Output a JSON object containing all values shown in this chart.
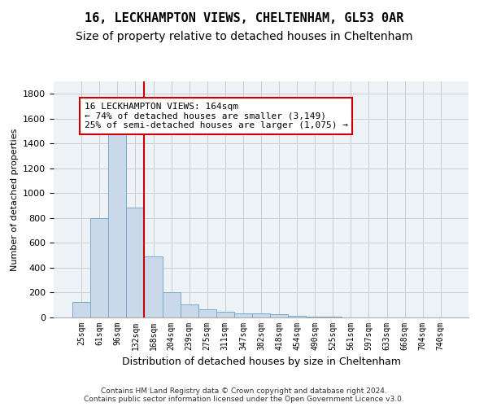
{
  "title1": "16, LECKHAMPTON VIEWS, CHELTENHAM, GL53 0AR",
  "title2": "Size of property relative to detached houses in Cheltenham",
  "xlabel": "Distribution of detached houses by size in Cheltenham",
  "ylabel": "Number of detached properties",
  "footer": "Contains HM Land Registry data © Crown copyright and database right 2024.\nContains public sector information licensed under the Open Government Licence v3.0.",
  "categories": [
    "25sqm",
    "61sqm",
    "96sqm",
    "132sqm",
    "168sqm",
    "204sqm",
    "239sqm",
    "275sqm",
    "311sqm",
    "347sqm",
    "382sqm",
    "418sqm",
    "454sqm",
    "490sqm",
    "525sqm",
    "561sqm",
    "597sqm",
    "633sqm",
    "668sqm",
    "704sqm",
    "740sqm"
  ],
  "values": [
    125,
    800,
    1490,
    885,
    490,
    205,
    105,
    65,
    45,
    35,
    30,
    25,
    15,
    5,
    5,
    3,
    3,
    2,
    2,
    2,
    2
  ],
  "bar_color": "#c9d9ea",
  "bar_edge_color": "#7aaac8",
  "vline_color": "#cc0000",
  "vline_pos": 3.5,
  "annotation_text": "16 LECKHAMPTON VIEWS: 164sqm\n← 74% of detached houses are smaller (3,149)\n25% of semi-detached houses are larger (1,075) →",
  "ylim": [
    0,
    1900
  ],
  "yticks": [
    0,
    200,
    400,
    600,
    800,
    1000,
    1200,
    1400,
    1600,
    1800
  ],
  "grid_color": "#cccccc",
  "background_color": "#edf2f7",
  "title_fontsize": 11,
  "subtitle_fontsize": 10,
  "annotation_fontsize": 8,
  "xlabel_fontsize": 9,
  "ylabel_fontsize": 8,
  "footer_fontsize": 6.5
}
